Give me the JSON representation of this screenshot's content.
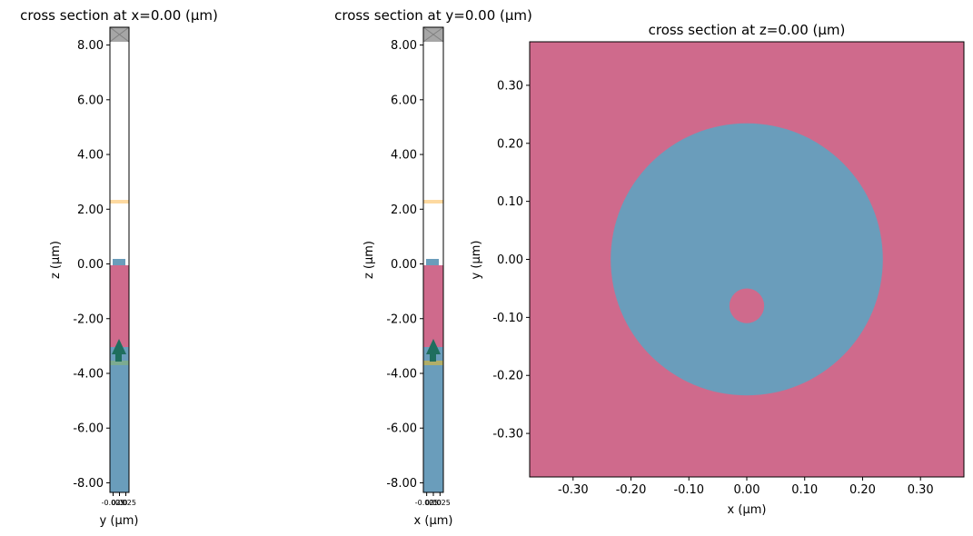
{
  "chart_data": [
    {
      "type": "cross-section",
      "title": "cross section at x=0.00 (μm)",
      "xlabel": "y (μm)",
      "ylabel": "z (μm)",
      "xlim": [
        -0.0375,
        0.0375
      ],
      "ylim": [
        -8.35,
        8.65
      ],
      "xticks": [
        -0.025,
        0.0,
        0.025
      ],
      "xtick_labels": [
        "-0.025",
        "0.00",
        "0.025"
      ],
      "yticks": [
        8,
        6,
        4,
        2,
        0,
        -2,
        -4,
        -6,
        -8
      ],
      "ytick_labels": [
        "8.00",
        "6.00",
        "4.00",
        "2.00",
        "0.00",
        "-2.00",
        "-4.00",
        "-6.00",
        "-8.00"
      ],
      "layers": {
        "pml_top": [
          8.1,
          8.65
        ],
        "monitor_z": 2.3,
        "structure_top": [
          0.0,
          0.22
        ],
        "cladding": [
          -3.0,
          0.0
        ],
        "substrate": [
          -8.35,
          -3.0
        ],
        "source_z": -3.6,
        "source_arrow": [
          -3.65,
          -2.8
        ]
      },
      "source_arrow_from_center": true
    },
    {
      "type": "cross-section",
      "title": "cross section at y=0.00 (μm)",
      "xlabel": "x (μm)",
      "ylabel": "z (μm)",
      "xlim": [
        -0.0375,
        0.0375
      ],
      "ylim": [
        -8.35,
        8.65
      ],
      "xticks": [
        -0.025,
        0.0,
        0.025
      ],
      "xtick_labels": [
        "-0.025",
        "0.00",
        "0.025"
      ],
      "yticks": [
        8,
        6,
        4,
        2,
        0,
        -2,
        -4,
        -6,
        -8
      ],
      "ytick_labels": [
        "8.00",
        "6.00",
        "4.00",
        "2.00",
        "0.00",
        "-2.00",
        "-4.00",
        "-6.00",
        "-8.00"
      ],
      "layers": {
        "pml_top": [
          8.1,
          8.65
        ],
        "monitor_z": 2.3,
        "structure_top": [
          0.0,
          0.22
        ],
        "cladding": [
          -3.0,
          0.0
        ],
        "substrate": [
          -8.35,
          -3.0
        ],
        "source_z": -3.6,
        "source_arrow": [
          -3.65,
          -2.8
        ]
      }
    },
    {
      "type": "cross-section",
      "title": "cross section at z=0.00 (μm)",
      "xlabel": "x (μm)",
      "ylabel": "y (μm)",
      "xlim": [
        -0.375,
        0.375
      ],
      "ylim": [
        -0.375,
        0.375
      ],
      "xticks": [
        -0.3,
        -0.2,
        -0.1,
        0.0,
        0.1,
        0.2,
        0.3
      ],
      "xtick_labels": [
        "-0.30",
        "-0.20",
        "-0.10",
        "0.00",
        "0.10",
        "0.20",
        "0.30"
      ],
      "yticks": [
        0.3,
        0.2,
        0.1,
        0.0,
        -0.1,
        -0.2,
        -0.3
      ],
      "ytick_labels": [
        "0.30",
        "0.20",
        "0.10",
        "0.00",
        "-0.10",
        "-0.20",
        "-0.30"
      ],
      "shapes": [
        {
          "shape": "circle",
          "cx": 0.0,
          "cy": 0.0,
          "r": 0.235,
          "material": "blue"
        },
        {
          "shape": "circle",
          "cx": 0.0,
          "cy": -0.08,
          "r": 0.03,
          "material": "pink"
        }
      ]
    }
  ],
  "colors": {
    "pink": "#cf6a8c",
    "blue": "#6a9dbb",
    "pml": "#a6a6a6",
    "monitor": "#fdd9a0",
    "source": "#1f6e5e",
    "source_line": "#b8b060"
  }
}
